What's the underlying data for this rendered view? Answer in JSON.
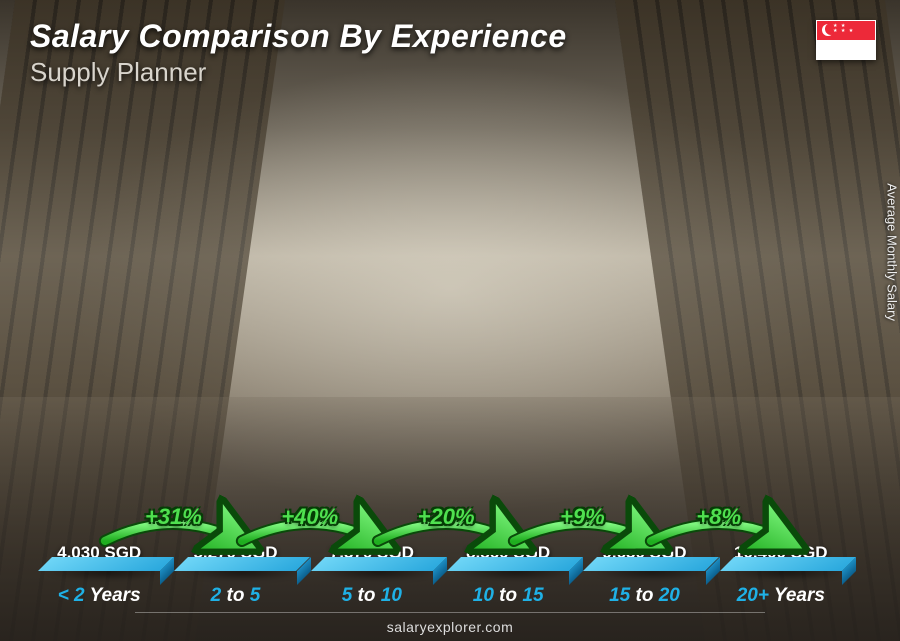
{
  "title": "Salary Comparison By Experience",
  "subtitle": "Supply Planner",
  "y_axis_label": "Average Monthly Salary",
  "footer": "salaryexplorer.com",
  "currency": "SGD",
  "chart": {
    "type": "bar",
    "max_value": 10400,
    "plot_height_ratio": 0.88,
    "bar_colors": {
      "front": "#1fb1e6",
      "top": "#6fd6f7",
      "side": "#0c5f8c"
    },
    "growth_color": "#4fe04f",
    "growth_outline": "#0a4a0a",
    "text_color": "#ffffff",
    "xlabel_accent": "#1fb1e6",
    "title_fontsize": 32,
    "subtitle_fontsize": 26,
    "value_fontsize": 17,
    "xlabel_fontsize": 19,
    "pct_fontsize": 22
  },
  "bars": [
    {
      "value": 4030,
      "value_label": "4,030 SGD",
      "xlabel_a": "< 2",
      "xlabel_b": " Years"
    },
    {
      "value": 5270,
      "value_label": "5,270 SGD",
      "xlabel_a": "2",
      "xlabel_b": " to ",
      "xlabel_c": "5"
    },
    {
      "value": 7370,
      "value_label": "7,370 SGD",
      "xlabel_a": "5",
      "xlabel_b": " to ",
      "xlabel_c": "10"
    },
    {
      "value": 8860,
      "value_label": "8,860 SGD",
      "xlabel_a": "10",
      "xlabel_b": " to ",
      "xlabel_c": "15"
    },
    {
      "value": 9630,
      "value_label": "9,630 SGD",
      "xlabel_a": "15",
      "xlabel_b": " to ",
      "xlabel_c": "20"
    },
    {
      "value": 10400,
      "value_label": "10,400 SGD",
      "xlabel_a": "20+",
      "xlabel_b": " Years"
    }
  ],
  "growth": [
    {
      "label": "+31%"
    },
    {
      "label": "+40%"
    },
    {
      "label": "+20%"
    },
    {
      "label": "+9%"
    },
    {
      "label": "+8%"
    }
  ],
  "flag": {
    "country": "Singapore",
    "top_color": "#ed2939",
    "bottom_color": "#ffffff"
  }
}
